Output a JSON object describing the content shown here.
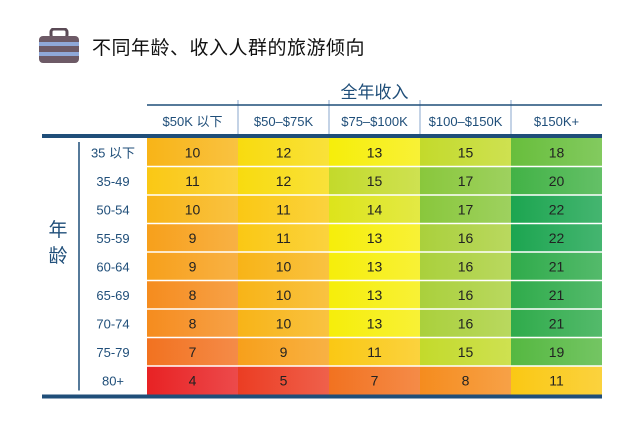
{
  "title": "不同年龄、收入人群的旅游倾向",
  "icon": "suitcase-icon",
  "chart_data": {
    "type": "heatmap",
    "title": "不同年龄、收入人群的旅游倾向",
    "xlabel": "全年收入",
    "ylabel": "年龄",
    "x_categories": [
      "$50K 以下",
      "$50–$75K",
      "$75–$100K",
      "$100–$150K",
      "$150K+"
    ],
    "y_categories": [
      "35 以下",
      "35-49",
      "50-54",
      "55-59",
      "60-64",
      "65-69",
      "70-74",
      "75-79",
      "80+"
    ],
    "values": [
      [
        10,
        12,
        13,
        15,
        18
      ],
      [
        11,
        12,
        15,
        17,
        20
      ],
      [
        10,
        11,
        14,
        17,
        22
      ],
      [
        9,
        11,
        13,
        16,
        22
      ],
      [
        9,
        10,
        13,
        16,
        21
      ],
      [
        8,
        10,
        13,
        16,
        21
      ],
      [
        8,
        10,
        13,
        16,
        21
      ],
      [
        7,
        9,
        11,
        15,
        19
      ],
      [
        4,
        5,
        7,
        8,
        11
      ]
    ],
    "colors": {
      "header_line": "#1f4e79",
      "axis_text": "#1f4e79",
      "grid": "#7a9cc6"
    }
  }
}
